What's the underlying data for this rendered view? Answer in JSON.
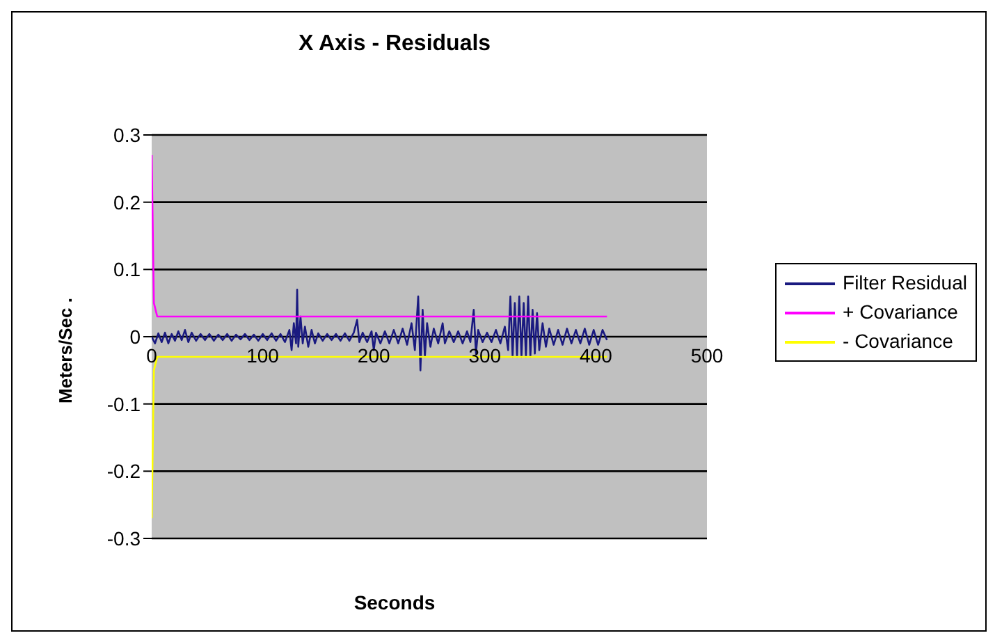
{
  "chart_data": {
    "type": "line",
    "title": "X Axis - Residuals",
    "xlabel": "Seconds",
    "ylabel": "Meters/Sec .",
    "xlim": [
      0,
      500
    ],
    "xticks": [
      0,
      100,
      200,
      300,
      400,
      500
    ],
    "ylim": [
      -0.3,
      0.3
    ],
    "yticks": [
      -0.3,
      -0.2,
      -0.1,
      0,
      0.1,
      0.2,
      0.3
    ],
    "grid": "y",
    "legend": "right",
    "marker": "none",
    "line_style": "solid",
    "series": [
      {
        "name": "Filter Residual",
        "color": "#1a1a80",
        "x": [
          0,
          3,
          6,
          9,
          12,
          15,
          18,
          21,
          24,
          27,
          30,
          33,
          36,
          40,
          44,
          48,
          52,
          56,
          60,
          64,
          68,
          72,
          76,
          80,
          84,
          88,
          92,
          96,
          100,
          104,
          108,
          112,
          116,
          120,
          124,
          126,
          128,
          130,
          131,
          132,
          134,
          136,
          138,
          141,
          144,
          147,
          150,
          154,
          158,
          162,
          166,
          170,
          174,
          178,
          182,
          185,
          187,
          190,
          194,
          198,
          200,
          202,
          206,
          210,
          214,
          218,
          222,
          226,
          230,
          234,
          237,
          240,
          242,
          244,
          246,
          248,
          251,
          254,
          258,
          262,
          264,
          268,
          272,
          276,
          280,
          284,
          287,
          290,
          292,
          294,
          298,
          302,
          306,
          310,
          314,
          318,
          321,
          323,
          325,
          327,
          329,
          331,
          333,
          335,
          337,
          339,
          341,
          343,
          345,
          347,
          349,
          352,
          355,
          358,
          362,
          366,
          370,
          374,
          378,
          382,
          386,
          390,
          394,
          398,
          402,
          406,
          410
        ],
        "values": [
          0,
          -0.01,
          0.005,
          -0.008,
          0.006,
          -0.01,
          0.004,
          -0.006,
          0.008,
          -0.005,
          0.01,
          -0.008,
          0.006,
          -0.006,
          0.004,
          -0.005,
          0.004,
          -0.006,
          0.003,
          -0.005,
          0.004,
          -0.006,
          0.003,
          -0.004,
          0.004,
          -0.005,
          0.003,
          -0.006,
          0.004,
          -0.005,
          0.005,
          -0.006,
          0.004,
          -0.008,
          0.01,
          -0.02,
          0.02,
          -0.01,
          0.07,
          -0.015,
          0.03,
          -0.01,
          0.015,
          -0.015,
          0.01,
          -0.01,
          0.005,
          -0.006,
          0.004,
          -0.005,
          0.004,
          -0.006,
          0.005,
          -0.006,
          0.006,
          0.025,
          -0.008,
          0.006,
          -0.008,
          0.008,
          -0.02,
          0.006,
          -0.01,
          0.008,
          -0.01,
          0.01,
          -0.01,
          0.012,
          -0.012,
          0.02,
          -0.02,
          0.06,
          -0.05,
          0.04,
          -0.03,
          0.02,
          -0.015,
          0.012,
          -0.01,
          0.02,
          -0.01,
          0.008,
          -0.008,
          0.008,
          -0.01,
          0.008,
          -0.008,
          0.04,
          -0.025,
          0.01,
          -0.008,
          0.006,
          -0.008,
          0.01,
          -0.01,
          0.015,
          -0.02,
          0.06,
          -0.03,
          0.05,
          -0.03,
          0.06,
          -0.03,
          0.05,
          -0.03,
          0.06,
          -0.03,
          0.04,
          -0.025,
          0.035,
          -0.02,
          0.02,
          -0.015,
          0.012,
          -0.012,
          0.01,
          -0.012,
          0.012,
          -0.01,
          0.01,
          -0.01,
          0.012,
          -0.012,
          0.01,
          -0.012,
          0.01,
          -0.005
        ]
      },
      {
        "name": "+ Covariance",
        "color": "#ff00ff",
        "x": [
          0,
          2,
          5,
          410
        ],
        "values": [
          0.27,
          0.05,
          0.03,
          0.03
        ]
      },
      {
        "name": "- Covariance",
        "color": "#ffff00",
        "x": [
          0,
          2,
          5,
          410
        ],
        "values": [
          -0.27,
          -0.05,
          -0.03,
          -0.03
        ]
      }
    ]
  }
}
